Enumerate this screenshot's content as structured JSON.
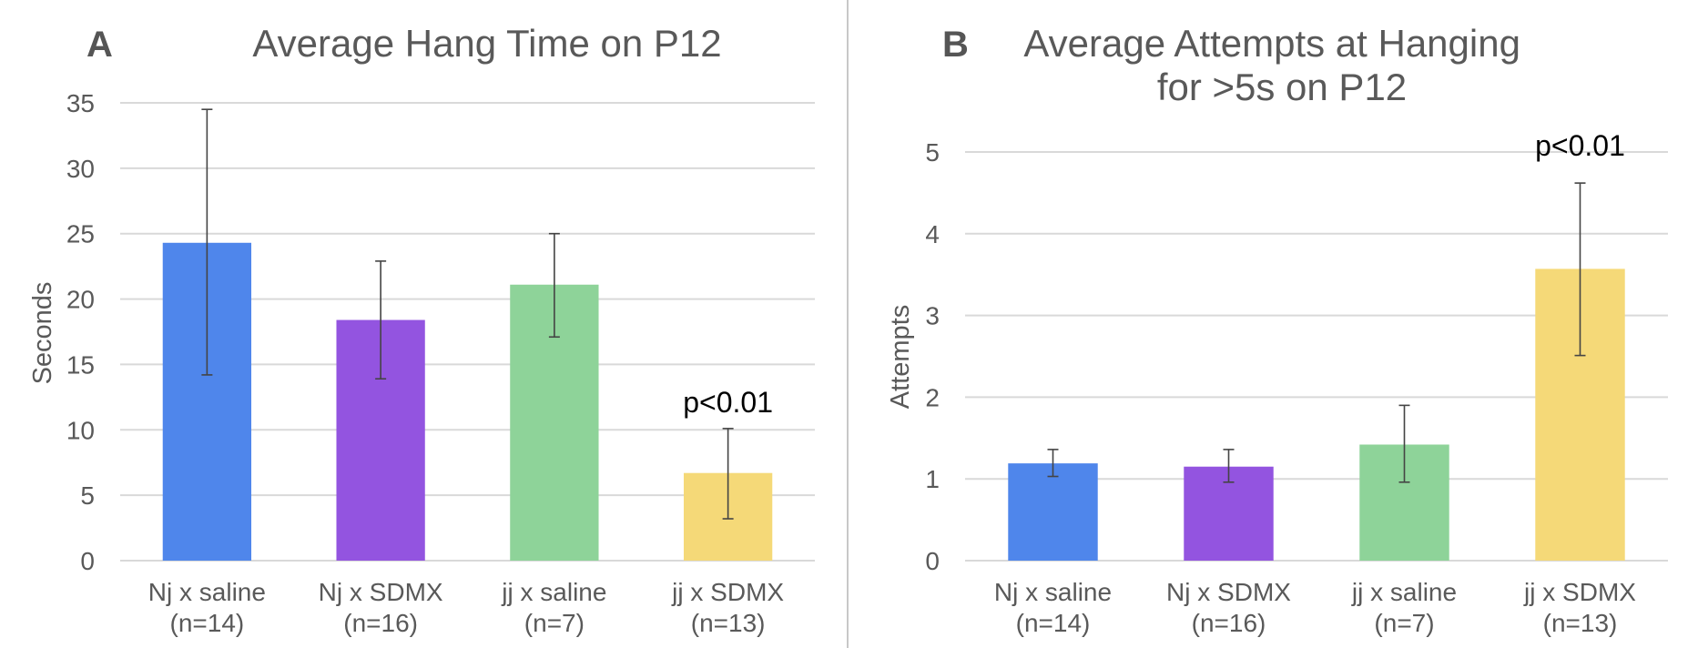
{
  "panels": [
    {
      "label": "A",
      "title_lines": [
        "Average Hang Time on P12"
      ],
      "ylabel": "Seconds"
    },
    {
      "label": "B",
      "title_lines": [
        "Average Attempts at Hanging",
        "for >5s on P12"
      ],
      "ylabel": "Attempts"
    }
  ],
  "chart_data": [
    {
      "type": "bar",
      "title": "Average Hang Time on P12",
      "xlabel": "",
      "ylabel": "Seconds",
      "ylim": [
        0,
        35
      ],
      "yticks": [
        0,
        5,
        10,
        15,
        20,
        25,
        30,
        35
      ],
      "grid": true,
      "categories": [
        [
          "Nj x saline",
          "(n=14)"
        ],
        [
          "Nj x SDMX",
          "(n=16)"
        ],
        [
          "jj x saline",
          "(n=7)"
        ],
        [
          "jj x SDMX",
          "(n=13)"
        ]
      ],
      "values": [
        24.3,
        18.4,
        21.1,
        6.7
      ],
      "error_low": [
        14.2,
        13.9,
        17.1,
        3.2
      ],
      "error_high": [
        34.5,
        22.9,
        25.0,
        10.1
      ],
      "colors": [
        "#4F86EB",
        "#9354E0",
        "#8ED399",
        "#F5D978"
      ],
      "annotations": [
        {
          "category_index": 3,
          "text": "p<0.01"
        }
      ]
    },
    {
      "type": "bar",
      "title": "Average Attempts at Hanging for >5s on P12",
      "xlabel": "",
      "ylabel": "Attempts",
      "ylim": [
        0,
        5
      ],
      "yticks": [
        0,
        1,
        2,
        3,
        4,
        5
      ],
      "grid": true,
      "categories": [
        [
          "Nj x saline",
          "(n=14)"
        ],
        [
          "Nj x SDMX",
          "(n=16)"
        ],
        [
          "jj x saline",
          "(n=7)"
        ],
        [
          "jj x SDMX",
          "(n=13)"
        ]
      ],
      "values": [
        1.19,
        1.15,
        1.42,
        3.57
      ],
      "error_low": [
        1.03,
        0.96,
        0.96,
        2.51
      ],
      "error_high": [
        1.36,
        1.36,
        1.9,
        4.62
      ],
      "colors": [
        "#4F86EB",
        "#9354E0",
        "#8ED399",
        "#F5D978"
      ],
      "annotations": [
        {
          "category_index": 3,
          "text": "p<0.01"
        }
      ]
    }
  ]
}
